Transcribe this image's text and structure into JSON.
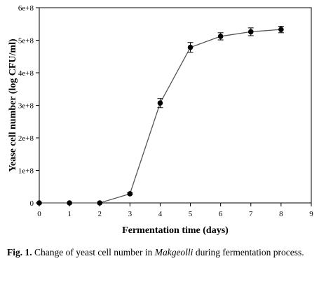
{
  "chart_data": {
    "type": "line",
    "title": "",
    "xlabel": "Fermentation time (days)",
    "ylabel": "Yease cell number (log CFU/ml)",
    "xlim": [
      0,
      9
    ],
    "ylim": [
      0,
      600000000
    ],
    "x_ticks": [
      0,
      1,
      2,
      3,
      4,
      5,
      6,
      7,
      8,
      9
    ],
    "x_tick_labels": [
      "0",
      "1",
      "2",
      "3",
      "4",
      "5",
      "6",
      "7",
      "8",
      "9"
    ],
    "y_ticks": [
      0,
      100000000,
      200000000,
      300000000,
      400000000,
      500000000,
      600000000
    ],
    "y_tick_labels": [
      "0",
      "1e+8",
      "2e+8",
      "3e+8",
      "4e+8",
      "5e+8",
      "6e+8"
    ],
    "grid": false,
    "legend": "none",
    "series": [
      {
        "x": [
          0,
          1,
          2,
          3,
          4,
          5,
          6,
          7,
          8
        ],
        "y": [
          0,
          0,
          0,
          28000000,
          307000000,
          478000000,
          512000000,
          526000000,
          533000000
        ],
        "error": [
          0,
          0,
          0,
          3000000,
          14000000,
          15000000,
          11000000,
          12000000,
          10000000
        ],
        "color": "#000000",
        "line_color": "#555555"
      }
    ]
  },
  "caption": {
    "label": "Fig. 1.",
    "text_before": " Change of yeast cell number in ",
    "italic": "Makgeolli",
    "text_after": " during fermentation process."
  }
}
